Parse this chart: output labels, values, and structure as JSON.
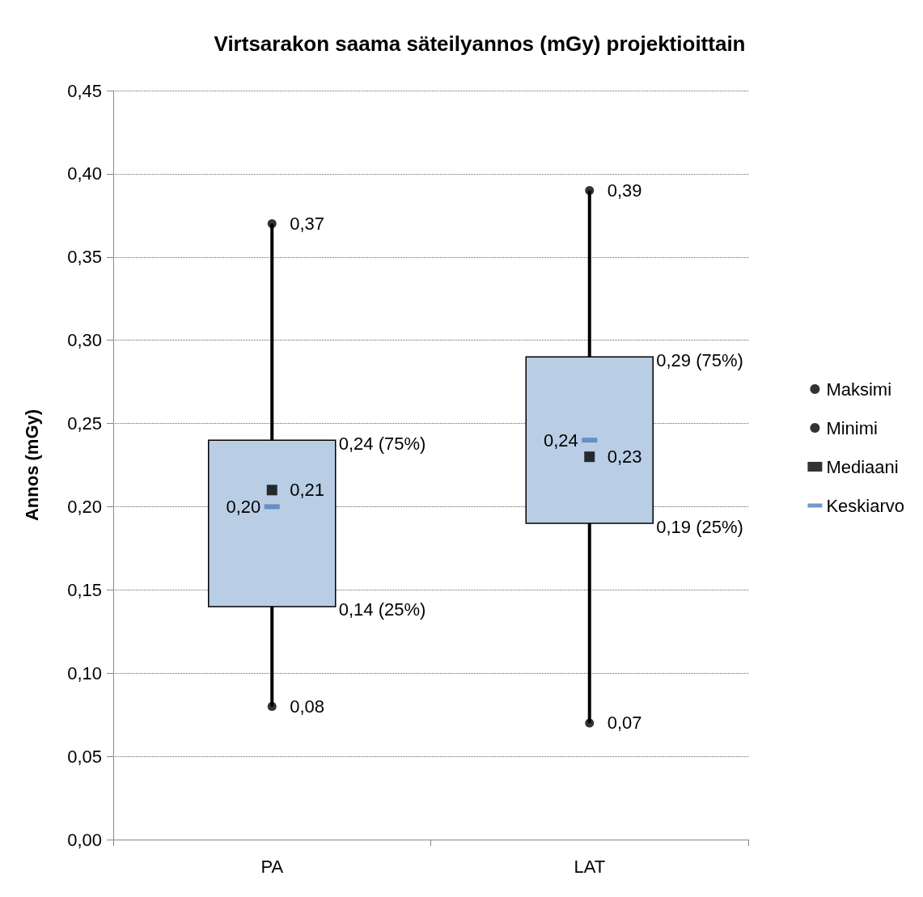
{
  "chart_data": {
    "type": "box",
    "title": "Virtsarakon saama säteilyannos (mGy) projektioittain",
    "ylabel": "Annos (mGy)",
    "categories": [
      "PA",
      "LAT"
    ],
    "boxes": [
      {
        "low": 0.08,
        "q1": 0.14,
        "q3": 0.24,
        "high": 0.37
      },
      {
        "low": 0.07,
        "q1": 0.19,
        "q3": 0.29,
        "high": 0.39
      }
    ],
    "color": "#b9cde5",
    "series": [
      {
        "name": "Maksimi",
        "type": "scatter",
        "marker": "circle",
        "color": "#000000",
        "values": [
          0.37,
          0.39
        ]
      },
      {
        "name": "Minimi",
        "type": "scatter",
        "marker": "circle",
        "color": "#000000",
        "values": [
          0.08,
          0.07
        ]
      },
      {
        "name": "Mediaani",
        "type": "scatter",
        "marker": "square",
        "color": "#000000",
        "values": [
          0.21,
          0.23
        ]
      },
      {
        "name": "Keskiarvo",
        "type": "scatter",
        "color": "#4f81bd",
        "values": [
          0.2,
          0.24
        ]
      }
    ],
    "ylim": [
      0,
      0.45
    ],
    "yticks": [
      {
        "value": 0,
        "label": "0,00"
      },
      {
        "value": 0.05,
        "label": "0,05"
      },
      {
        "value": 0.1,
        "label": "0,10"
      },
      {
        "value": 0.15,
        "label": "0,15"
      },
      {
        "value": 0.2,
        "label": "0,20"
      },
      {
        "value": 0.25,
        "label": "0,25"
      },
      {
        "value": 0.3,
        "label": "0,30"
      },
      {
        "value": 0.35,
        "label": "0,35"
      },
      {
        "value": 0.4,
        "label": "0,40"
      },
      {
        "value": 0.45,
        "label": "0,45"
      }
    ],
    "grid": "y",
    "legend": "right",
    "annotations": [
      {
        "text": "0,37",
        "x": "PA",
        "y": 0.37
      },
      "0,24 (75%)",
      {
        "text": "0,21",
        "x": "PA",
        "y": 0.21
      },
      {
        "text": "0,20",
        "x": "PA",
        "y": 0.2
      },
      "0,14 (25%)",
      {
        "text": "0,08",
        "x": "PA",
        "y": 0.08
      },
      {
        "text": "0,39",
        "x": "LAT",
        "y": 0.39
      },
      "0,29 (75%)",
      {
        "text": "0,24",
        "x": "LAT",
        "y": 0.24
      },
      {
        "text": "0,23",
        "x": "LAT",
        "y": 0.23
      },
      "0,19 (25%)",
      {
        "text": "0,07",
        "x": "LAT",
        "y": 0.07
      }
    ]
  }
}
